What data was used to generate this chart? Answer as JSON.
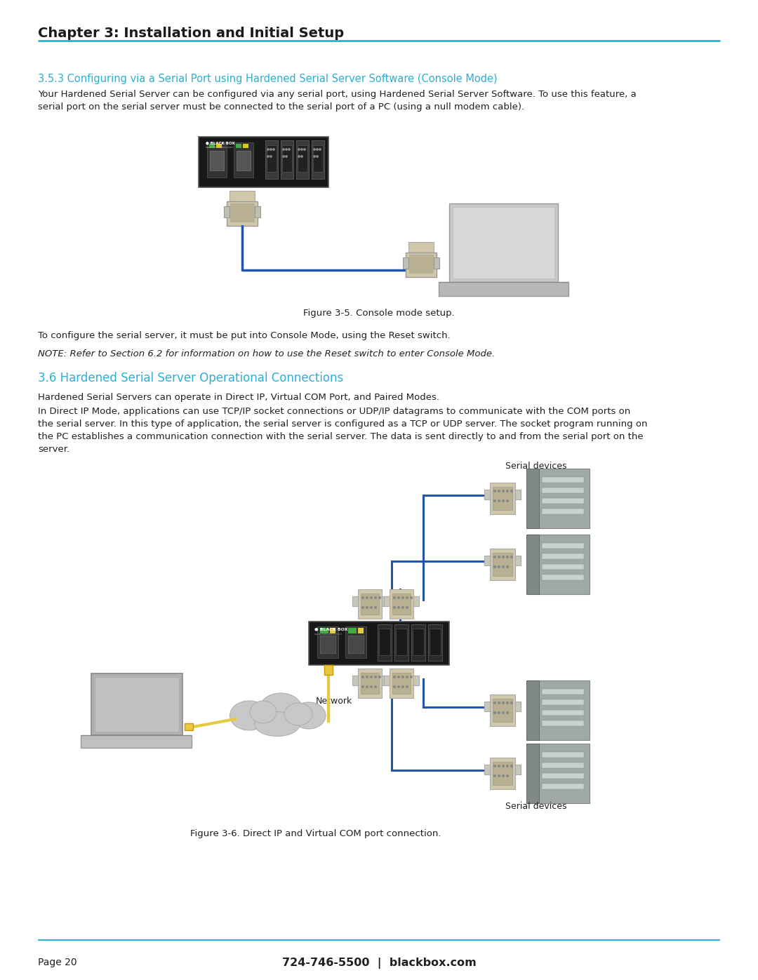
{
  "bg_color": "#ffffff",
  "chapter_header": "Chapter 3: Installation and Initial Setup",
  "chapter_header_color": "#1a1a1a",
  "chapter_header_size": 14,
  "header_line_color": "#2bafd4",
  "section_353_title": "3.5.3 Configuring via a Serial Port using Hardened Serial Server Software (Console Mode)",
  "section_353_color": "#2bafd4",
  "section_353_size": 10.5,
  "section_353_body": "Your Hardened Serial Server can be configured via any serial port, using Hardened Serial Server Software. To use this feature, a serial port on the serial server must be connected to the serial port of a PC (using a null modem cable).",
  "body_text_size": 9.5,
  "body_text_color": "#231f20",
  "fig35_caption": "Figure 3-5. Console mode setup.",
  "text_after_fig35": "To configure the serial server, it must be put into Console Mode, using the Reset switch.",
  "note_text": "NOTE: Refer to Section 6.2 for information on how to use the Reset switch to enter Console Mode.",
  "section_36_title": "3.6 Hardened Serial Server Operational Connections",
  "section_36_color": "#2bafd4",
  "section_36_size": 12,
  "section_36_body1": "Hardened Serial Servers can operate in Direct IP, Virtual COM Port, and Paired Modes.",
  "section_36_body2": "In Direct IP Mode, applications can use TCP/IP socket connections or UDP/IP datagrams to communicate with the COM ports on the serial server. In this type of application, the serial server is configured as a TCP or UDP server. The socket program running on the PC establishes a communication connection with the serial server. The data is sent directly to and from the serial port on the server.",
  "label_serial_devices_top": "Serial devices",
  "label_network": "Network",
  "label_serial_devices_bottom": "Serial devices",
  "fig36_caption": "Figure 3-6. Direct IP and Virtual COM port connection.",
  "footer_line_color": "#2bafd4",
  "footer_page": "Page 20",
  "footer_contact": "724-746-5500  |  blackbox.com",
  "footer_size": 10,
  "cable_color": "#2255aa",
  "yellow_cable": "#e8c840",
  "device_gray_light": "#a0a8a8",
  "device_gray_mid": "#808888",
  "device_gray_dark": "#505858",
  "connector_beige": "#d0c8a8",
  "connector_beige_dark": "#b8b090",
  "server_black": "#181818",
  "server_dark": "#282828",
  "cloud_gray": "#c8c8c8",
  "laptop_gray": "#b0b0b0",
  "laptop_screen": "#c0c0c0"
}
